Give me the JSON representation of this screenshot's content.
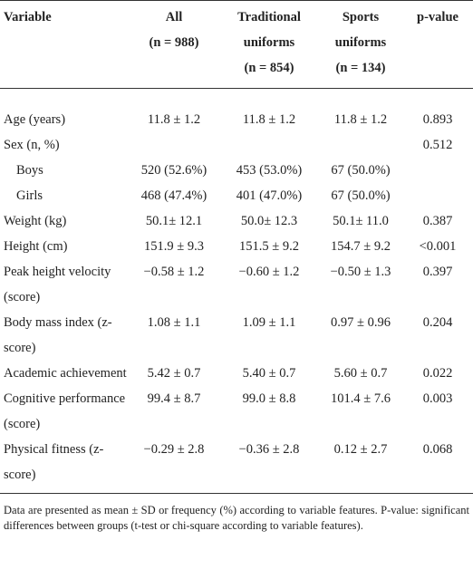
{
  "table": {
    "header": {
      "variable": "Variable",
      "all": [
        "All",
        "(n = 988)"
      ],
      "traditional": [
        "Traditional",
        "uniforms",
        "(n = 854)"
      ],
      "sports": [
        "Sports",
        "uniforms",
        "(n = 134)"
      ],
      "p_value": "p-value"
    },
    "rows": [
      {
        "variable": "Age (years)",
        "all": "11.8 ± 1.2",
        "traditional": "11.8 ± 1.2",
        "sports": "11.8 ± 1.2",
        "p_value": "0.893"
      },
      {
        "variable": "Sex (n, %)",
        "p_value": "0.512"
      },
      {
        "variable": "Boys",
        "indent": true,
        "all": "520 (52.6%)",
        "traditional": "453 (53.0%)",
        "sports": "67 (50.0%)"
      },
      {
        "variable": "Girls",
        "indent": true,
        "all": "468 (47.4%)",
        "traditional": "401 (47.0%)",
        "sports": "67 (50.0%)"
      },
      {
        "variable": "Weight (kg)",
        "all": "50.1± 12.1",
        "traditional": "50.0± 12.3",
        "sports": "50.1± 11.0",
        "p_value": "0.387"
      },
      {
        "variable": "Height (cm)",
        "all": "151.9 ± 9.3",
        "traditional": "151.5 ± 9.2",
        "sports": "154.7 ± 9.2",
        "p_value": "<0.001"
      },
      {
        "variable": "Peak height velocity (score)",
        "all": "−0.58 ± 1.2",
        "traditional": "−0.60 ± 1.2",
        "sports": "−0.50 ± 1.3",
        "p_value": "0.397"
      },
      {
        "variable": "Body mass index (z-score)",
        "all": "1.08 ± 1.1",
        "traditional": "1.09 ± 1.1",
        "sports": "0.97 ± 0.96",
        "p_value": "0.204"
      },
      {
        "variable": "Academic achievement",
        "all": "5.42 ± 0.7",
        "traditional": "5.40 ± 0.7",
        "sports": "5.60 ± 0.7",
        "p_value": "0.022"
      },
      {
        "variable": "Cognitive performance (score)",
        "all": "99.4 ± 8.7",
        "traditional": "99.0 ± 8.8",
        "sports": "101.4 ± 7.6",
        "p_value": "0.003"
      },
      {
        "variable": "Physical fitness (z-score)",
        "all": "−0.29 ± 2.8",
        "traditional": "−0.36 ± 2.8",
        "sports": "0.12 ± 2.7",
        "p_value": "0.068"
      }
    ],
    "footnote": "Data are presented as mean ± SD or frequency (%) according to variable features. P-value: significant differences between groups (t-test or chi-square according to variable features)."
  }
}
